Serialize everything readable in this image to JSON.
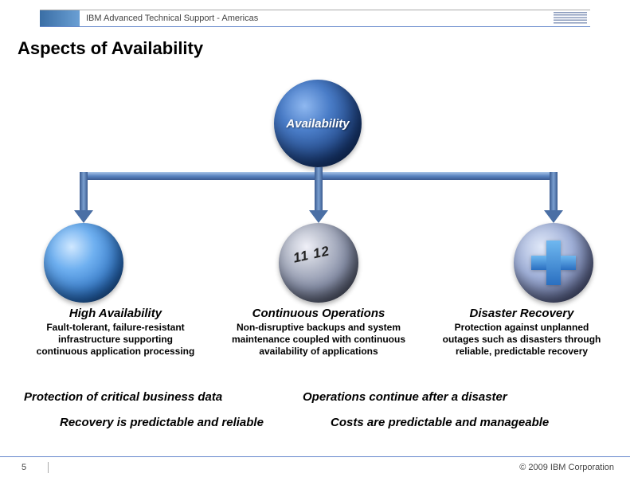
{
  "header": {
    "title": "IBM Advanced Technical Support - Americas",
    "logo_text": "IBM"
  },
  "page": {
    "title": "Aspects of Availability"
  },
  "diagram": {
    "top_label": "Availability",
    "aspects": [
      {
        "title": "High Availability",
        "desc": "Fault-tolerant, failure-resistant infrastructure supporting continuous application processing"
      },
      {
        "title": "Continuous Operations",
        "desc": "Non-disruptive backups and system maintenance coupled with continuous availability of applications"
      },
      {
        "title": "Disaster Recovery",
        "desc": "Protection against unplanned outages such as disasters through reliable, predictable recovery"
      }
    ]
  },
  "statements": {
    "line1_left": "Protection of critical business data",
    "line1_right": "Operations continue after a disaster",
    "line2_left": "Recovery is predictable and reliable",
    "line2_right": "Costs are predictable and manageable"
  },
  "footer": {
    "page_number": "5",
    "copyright": "© 2009 IBM Corporation"
  },
  "colors": {
    "header_accent": "#6688cc",
    "sphere_primary": "#1a3d7a",
    "connector": "#5a84c0"
  }
}
